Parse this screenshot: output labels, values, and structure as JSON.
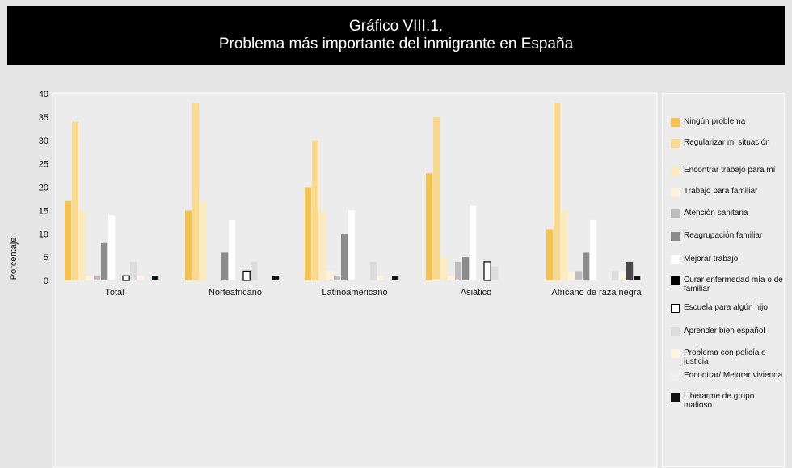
{
  "chart_data": {
    "type": "bar",
    "title": "Gráfico VIII.1.",
    "subtitle": "Problema más importante del inmigrante en España",
    "xlabel": "",
    "ylabel": "Porcentaje",
    "ylim": [
      0,
      40
    ],
    "yticks": [
      "0",
      "5",
      "10",
      "15",
      "20",
      "25",
      "30",
      "35",
      "40"
    ],
    "grid": false,
    "legend": "right",
    "categories": [
      "Total",
      "Norteafricano",
      "Latinoamericano",
      "Asiático",
      "Africano de raza negra"
    ],
    "series": [
      {
        "name": "Ningún problema",
        "color": "#f6c24e",
        "values": [
          17,
          15,
          20,
          23,
          11
        ]
      },
      {
        "name": "Regularizar mi situación",
        "color": "#fbd98c",
        "values": [
          34,
          38,
          30,
          35,
          38
        ]
      },
      {
        "name": "Encontrar trabajo para mí",
        "color": "#fdebbe",
        "values": [
          15,
          17,
          15,
          5,
          15
        ]
      },
      {
        "name": "Trabajo para familiar",
        "color": "#fdf3de",
        "values": [
          1,
          0,
          2,
          1,
          2
        ]
      },
      {
        "name": "Atención sanitaria",
        "color": "#bdbdbd",
        "values": [
          1,
          0,
          1,
          4,
          2
        ]
      },
      {
        "name": "Reagrupación familiar",
        "color": "#8c8c8c",
        "values": [
          8,
          6,
          10,
          5,
          6
        ]
      },
      {
        "name": "Mejorar trabajo",
        "color": "#ffffff",
        "values": [
          14,
          13,
          15,
          16,
          13
        ]
      },
      {
        "name": "Curar enfermedad mía o de familiar",
        "color": "#000000",
        "values": [
          0,
          0,
          0,
          0,
          0
        ]
      },
      {
        "name": "Escuela para algún hijo",
        "color": "#ffffff",
        "stroke": "#000000",
        "values": [
          1,
          2,
          0,
          4,
          0
        ]
      },
      {
        "name": "Aprender bien español",
        "color": "#dcdcdc",
        "values": [
          4,
          4,
          4,
          3,
          2
        ]
      },
      {
        "name": "Problema con policía o justicia",
        "color": "#fdf5e2",
        "values": [
          1,
          0,
          1,
          0,
          2
        ]
      },
      {
        "name": "Encontrar/ Mejorar vivienda",
        "color": "#efefef",
        "values": [
          0,
          0,
          0,
          0,
          0
        ]
      },
      {
        "name": "Liberarme de grupo mafioso",
        "color": "#111111",
        "values": [
          1,
          1,
          1,
          0,
          1
        ]
      }
    ],
    "extra_bars": [
      {
        "category": "Africano de raza negra",
        "color": "#4a4a4a",
        "value": 4
      }
    ]
  }
}
